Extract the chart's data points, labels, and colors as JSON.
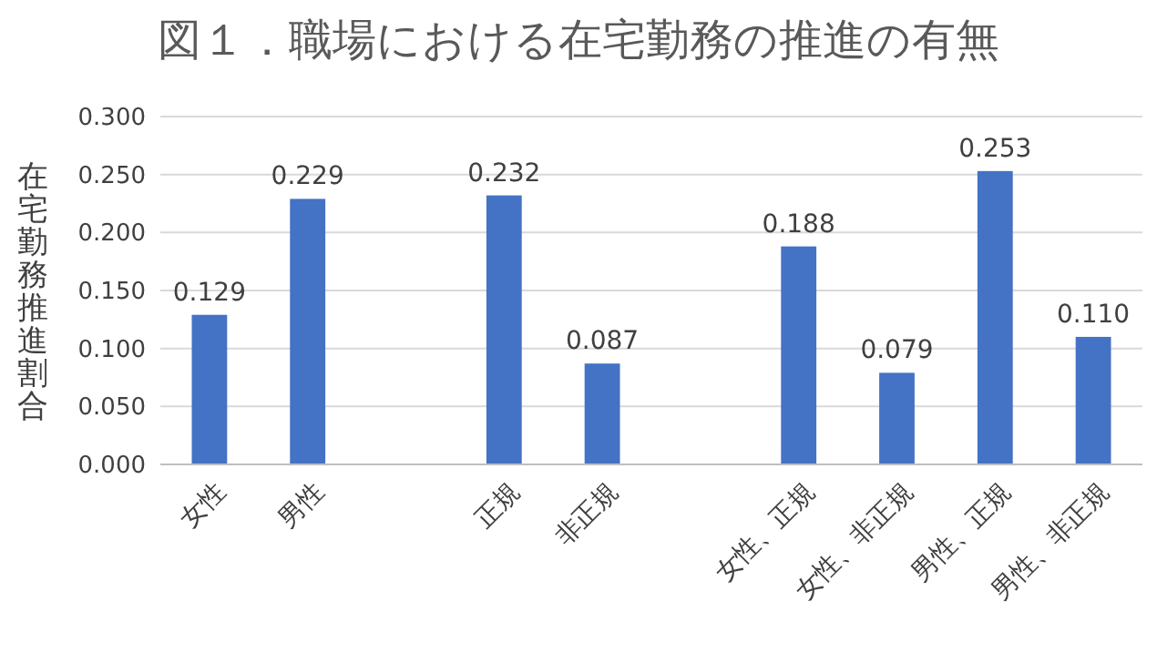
{
  "chart_data": {
    "type": "bar",
    "title": "図１．職場における在宅勤務の推進の有無",
    "ylabel": "在宅勤務推進割合",
    "categories": [
      "女性",
      "男性",
      null,
      "正規",
      "非正規",
      null,
      "女性、正規",
      "女性、非正規",
      "男性、正規",
      "男性、非正規"
    ],
    "values": [
      0.129,
      0.229,
      null,
      0.232,
      0.087,
      null,
      0.188,
      0.079,
      0.253,
      0.11
    ],
    "value_labels": [
      "0.129",
      "0.229",
      null,
      "0.232",
      "0.087",
      null,
      "0.188",
      "0.079",
      "0.253",
      "0.110"
    ],
    "color": "#4472c4",
    "ylim": [
      0,
      0.3
    ],
    "yticks": [
      {
        "value": 0,
        "label": "0.000"
      },
      {
        "value": 0.05,
        "label": "0.050"
      },
      {
        "value": 0.1,
        "label": "0.100"
      },
      {
        "value": 0.15,
        "label": "0.150"
      },
      {
        "value": 0.2,
        "label": "0.200"
      },
      {
        "value": 0.25,
        "label": "0.250"
      },
      {
        "value": 0.3,
        "label": "0.300"
      }
    ],
    "grid": "y"
  }
}
